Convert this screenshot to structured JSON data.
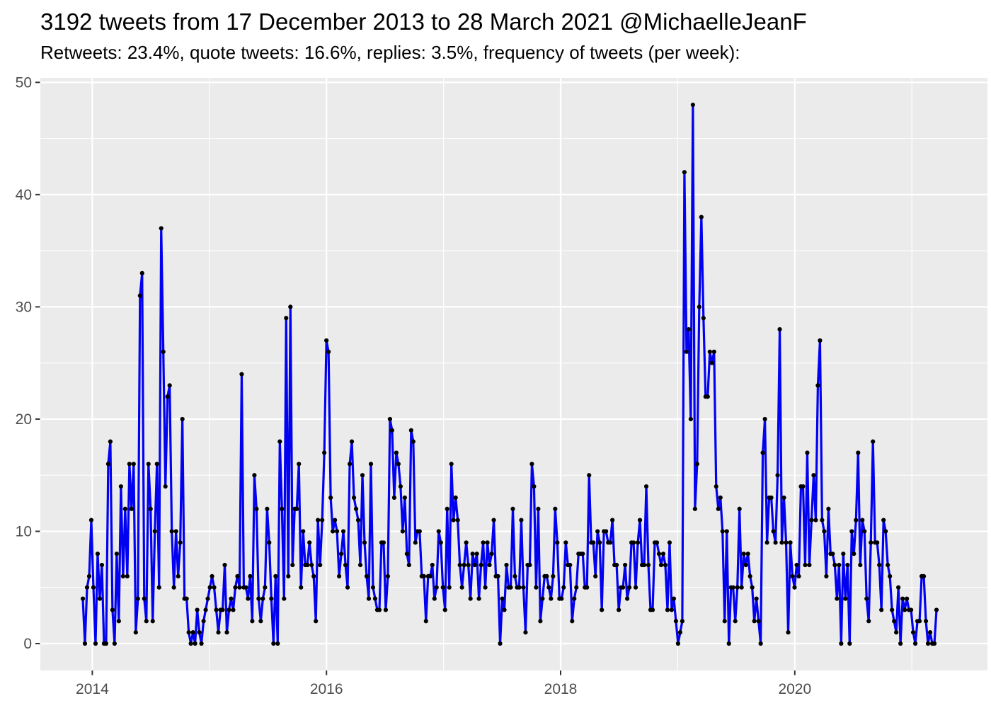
{
  "header": {
    "title": "3192 tweets from 17 December 2013 to 28 March 2021 @MichaelleJeanF",
    "subtitle": "Retweets: 23.4%, quote tweets: 16.6%, replies: 3.5%, frequency of tweets (per week):"
  },
  "chart_data": {
    "type": "line",
    "title": "3192 tweets from 17 December 2013 to 28 March 2021 @MichaelleJeanF",
    "subtitle": "Retweets: 23.4%, quote tweets: 16.6%, replies: 3.5%, frequency of tweets (per week):",
    "series_name": "tweets per week",
    "start_date": "2013-12-17",
    "end_date": "2021-03-28",
    "total_tweets": 3192,
    "retweets_pct": 23.4,
    "quote_tweets_pct": 16.6,
    "replies_pct": 3.5,
    "x_axis": {
      "tick_labels": [
        "2014",
        "2016",
        "2018",
        "2020"
      ],
      "tick_years": [
        2014,
        2016,
        2018,
        2020
      ],
      "minor_tick_years": [
        2015,
        2017,
        2019,
        2021
      ]
    },
    "y_axis": {
      "tick_labels": [
        "0",
        "10",
        "20",
        "30",
        "40",
        "50"
      ],
      "ticks": [
        0,
        10,
        20,
        30,
        40,
        50
      ],
      "minor_ticks": [
        5,
        15,
        25,
        35,
        45
      ],
      "range": [
        0,
        50
      ]
    },
    "grid": true,
    "legend": false,
    "values": [
      4,
      0,
      5,
      6,
      11,
      5,
      0,
      8,
      4,
      7,
      0,
      0,
      16,
      18,
      3,
      0,
      8,
      2,
      14,
      6,
      12,
      6,
      16,
      12,
      16,
      1,
      4,
      31,
      33,
      4,
      2,
      16,
      12,
      2,
      10,
      16,
      5,
      37,
      26,
      14,
      22,
      23,
      10,
      5,
      10,
      6,
      9,
      20,
      4,
      4,
      1,
      0,
      1,
      0,
      3,
      1,
      0,
      2,
      3,
      4,
      5,
      6,
      5,
      3,
      1,
      3,
      3,
      7,
      1,
      3,
      4,
      3,
      5,
      6,
      5,
      24,
      5,
      5,
      4,
      6,
      2,
      15,
      12,
      4,
      2,
      4,
      5,
      12,
      9,
      4,
      0,
      6,
      0,
      18,
      12,
      4,
      29,
      6,
      30,
      7,
      12,
      12,
      16,
      5,
      10,
      7,
      7,
      9,
      7,
      6,
      2,
      11,
      7,
      11,
      17,
      27,
      26,
      13,
      10,
      11,
      10,
      6,
      8,
      10,
      7,
      5,
      16,
      18,
      13,
      12,
      11,
      7,
      15,
      9,
      6,
      4,
      16,
      5,
      4,
      3,
      3,
      9,
      9,
      3,
      6,
      20,
      19,
      13,
      17,
      16,
      14,
      10,
      13,
      8,
      7,
      19,
      18,
      9,
      10,
      10,
      6,
      6,
      2,
      6,
      6,
      7,
      4,
      5,
      10,
      9,
      5,
      3,
      12,
      5,
      16,
      11,
      13,
      11,
      7,
      5,
      7,
      9,
      7,
      4,
      8,
      7,
      8,
      4,
      7,
      9,
      5,
      9,
      7,
      8,
      11,
      6,
      6,
      0,
      4,
      3,
      7,
      5,
      5,
      12,
      6,
      5,
      5,
      11,
      5,
      1,
      7,
      7,
      16,
      14,
      5,
      12,
      2,
      4,
      6,
      6,
      5,
      4,
      6,
      12,
      9,
      4,
      4,
      5,
      9,
      7,
      7,
      2,
      4,
      5,
      8,
      8,
      8,
      5,
      5,
      15,
      9,
      9,
      6,
      10,
      9,
      3,
      10,
      10,
      9,
      9,
      11,
      7,
      7,
      3,
      5,
      5,
      7,
      4,
      5,
      9,
      9,
      5,
      9,
      11,
      7,
      7,
      14,
      7,
      3,
      3,
      9,
      9,
      8,
      7,
      8,
      7,
      3,
      9,
      3,
      4,
      2,
      0,
      1,
      2,
      42,
      26,
      28,
      20,
      48,
      12,
      16,
      30,
      38,
      29,
      22,
      22,
      26,
      25,
      26,
      14,
      12,
      13,
      10,
      2,
      10,
      0,
      5,
      5,
      2,
      5,
      12,
      5,
      8,
      7,
      8,
      6,
      5,
      2,
      4,
      2,
      0,
      17,
      20,
      9,
      13,
      13,
      10,
      9,
      15,
      28,
      9,
      13,
      9,
      1,
      9,
      6,
      5,
      7,
      6,
      14,
      14,
      7,
      17,
      7,
      11,
      15,
      11,
      23,
      27,
      11,
      10,
      6,
      12,
      8,
      8,
      7,
      4,
      7,
      0,
      8,
      4,
      7,
      0,
      10,
      8,
      11,
      17,
      7,
      11,
      10,
      4,
      2,
      9,
      18,
      9,
      9,
      7,
      3,
      11,
      10,
      7,
      6,
      3,
      2,
      1,
      5,
      0,
      4,
      3,
      4,
      3,
      3,
      1,
      0,
      2,
      2,
      6,
      6,
      2,
      0,
      1,
      0,
      0,
      3
    ],
    "colors": {
      "line": "#0202f0",
      "point": "#000000",
      "panel_background": "#EBEBEB",
      "grid_line": "#FFFFFF",
      "axis_text": "#4D4D4D",
      "tick_mark": "#333333",
      "title_text": "#000000"
    }
  }
}
